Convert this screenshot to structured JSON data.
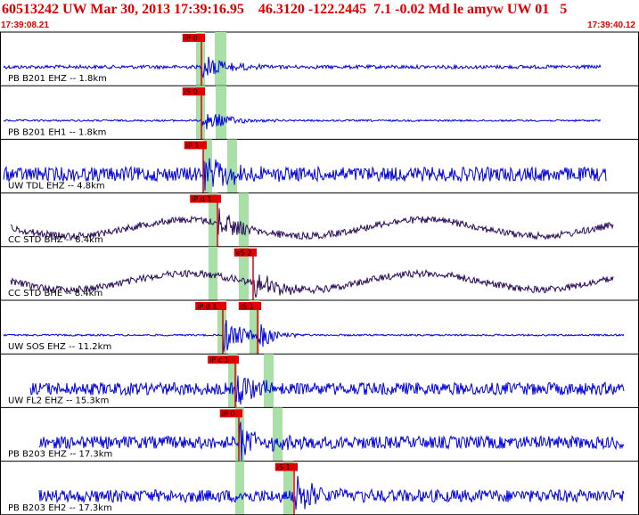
{
  "header": {
    "title": "60513242 UW Mar 30, 2013 17:39:16.95    46.3120 -122.2445  7.1 -0.02 Md le amyw UW 01   5",
    "time_start": "17:39:08.21",
    "time_end": "17:39:40.12"
  },
  "colors": {
    "header_text": "#e00000",
    "trace_blue": "#0000e0",
    "trace_purple": "#2a0a5a",
    "pick_box": "#e00000",
    "pick_window": "#a8e0a8",
    "grid": "#000000"
  },
  "channels": [
    {
      "label": "PB B201 EHZ -- 1.8km",
      "color": "blue",
      "pick": "iP 0",
      "noise": "flat"
    },
    {
      "label": "PB B201 EH1 -- 1.8km",
      "color": "blue",
      "pick": "iS 0",
      "noise": "flat"
    },
    {
      "label": "UW TDL EHZ -- 4.8km",
      "color": "blue",
      "pick": "iP 1",
      "noise": "noisy"
    },
    {
      "label": "CC STD BHZ -- 8.4km",
      "color": "purple",
      "pick": "iP d 1",
      "noise": "wave"
    },
    {
      "label": "CC STD BHE -- 8.4km",
      "color": "purple",
      "pick": "eS 2",
      "noise": "wave"
    },
    {
      "label": "UW SOS EHZ -- 11.2km",
      "color": "blue",
      "pick": "iP d 1",
      "pick2": "iS 1",
      "noise": "flat"
    },
    {
      "label": "UW FL2 EHZ -- 15.3km",
      "color": "blue",
      "pick": "iP c 1",
      "noise": "noisy"
    },
    {
      "label": "PB B203 EHZ -- 17.3km",
      "color": "blue",
      "pick": "iP 0",
      "noise": "noisy"
    },
    {
      "label": "PB B203 EH2 -- 17.3km",
      "color": "blue",
      "pick": "iS 1",
      "noise": "noisy"
    }
  ]
}
